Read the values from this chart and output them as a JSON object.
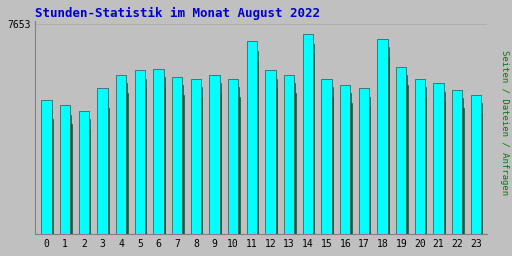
{
  "title": "Stunden-Statistik im Monat August 2022",
  "ylabel": "Seiten / Dateien / Anfragen",
  "hours": [
    0,
    1,
    2,
    3,
    4,
    5,
    6,
    7,
    8,
    9,
    10,
    11,
    12,
    13,
    14,
    15,
    16,
    17,
    18,
    19,
    20,
    21,
    22,
    23
  ],
  "seiten": [
    82,
    79,
    75,
    89,
    97,
    100,
    101,
    96,
    95,
    97,
    95,
    118,
    100,
    97,
    122,
    95,
    91,
    89,
    119,
    102,
    95,
    92,
    88,
    85
  ],
  "dateien": [
    76,
    73,
    70,
    83,
    92,
    95,
    96,
    91,
    90,
    92,
    90,
    112,
    95,
    92,
    116,
    90,
    86,
    84,
    114,
    97,
    90,
    87,
    83,
    80
  ],
  "anfragen": [
    70,
    67,
    64,
    77,
    86,
    89,
    90,
    85,
    84,
    86,
    84,
    106,
    89,
    86,
    110,
    84,
    80,
    78,
    108,
    91,
    84,
    81,
    77,
    74
  ],
  "bar_color_seiten": "#00FFFF",
  "bar_color_dateien": "#008B8B",
  "bar_color_anfragen": "#006400",
  "bar_edge_color": "#2F4F4F",
  "background_color": "#C0C0C0",
  "plot_bg_color": "#C0C0C0",
  "title_color": "#0000CC",
  "ylabel_color": "#008000",
  "ymax_label": "7653",
  "ylim_max": 130,
  "ytick_pos": 128
}
